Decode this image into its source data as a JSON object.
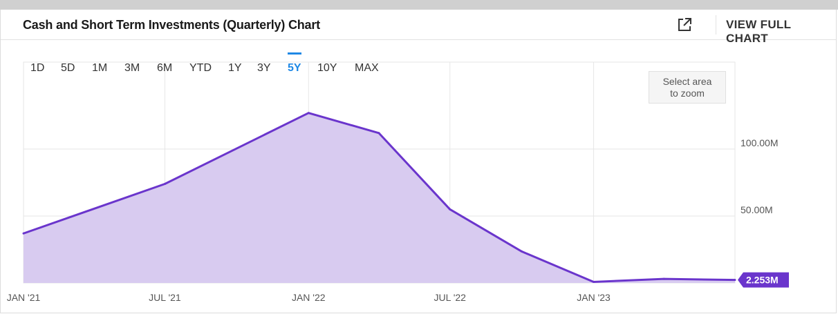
{
  "header": {
    "title": "Cash and Short Term Investments (Quarterly) Chart",
    "view_full_chart": "VIEW FULL CHART"
  },
  "range_buttons": [
    "1D",
    "5D",
    "1M",
    "3M",
    "6M",
    "YTD",
    "1Y",
    "3Y",
    "5Y",
    "10Y",
    "MAX"
  ],
  "active_range": "5Y",
  "zoom_hint": [
    "Select area",
    "to zoom"
  ],
  "colors": {
    "line": "#6a35cc",
    "fill": "#d8cbf0",
    "active": "#1e88e5",
    "grid": "#e6e6e6"
  },
  "chart_data": {
    "type": "area",
    "title": "Cash and Short Term Investments (Quarterly) Chart",
    "series": [
      {
        "x": [
          "2021-01-01",
          "2021-07-01",
          "2022-01-01",
          "2022-04-01",
          "2022-07-01",
          "2022-10-01",
          "2023-01-01",
          "2023-04-01",
          "2023-07-01"
        ],
        "values": [
          37,
          74,
          127,
          112,
          55,
          23.5,
          0.8,
          3,
          2.253
        ]
      }
    ],
    "unit": "M",
    "yticks": [
      "50.00M",
      "100.00M"
    ],
    "ytick_values": [
      50,
      100
    ],
    "ylim": [
      0,
      165
    ],
    "xticks": [
      "JAN '21",
      "JUL '21",
      "JAN '22",
      "JUL '22",
      "JAN '23"
    ],
    "xtick_dates": [
      "2021-01-01",
      "2021-07-01",
      "2022-01-01",
      "2022-07-01",
      "2023-01-01"
    ],
    "xlim": [
      "2021-01-01",
      "2023-07-01"
    ],
    "last_value_label": "2.253M",
    "grid": true
  }
}
